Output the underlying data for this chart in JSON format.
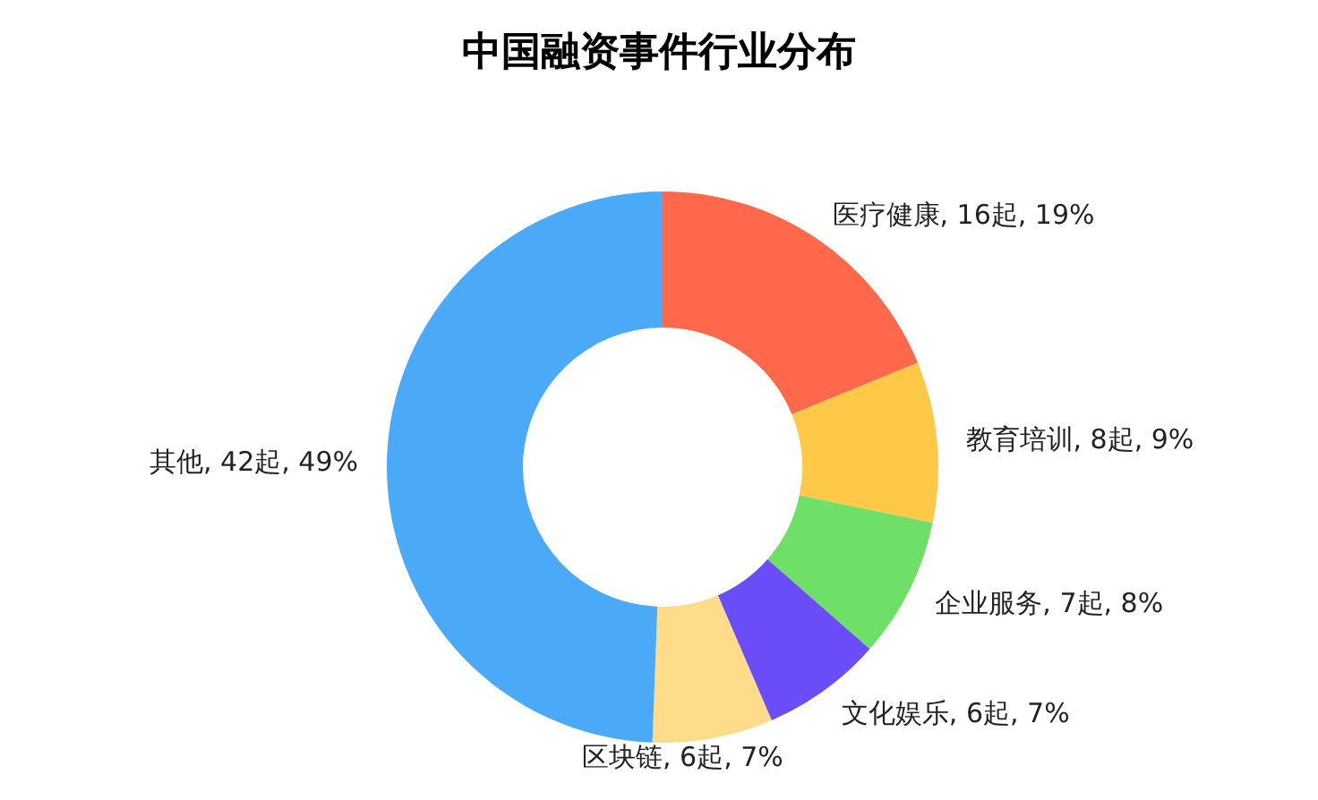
{
  "chart_data": {
    "type": "donut",
    "title": "中国融资事件行业分布",
    "categories": [
      "医疗健康",
      "教育培训",
      "企业服务",
      "文化娱乐",
      "区块链",
      "其他"
    ],
    "values": [
      16,
      8,
      7,
      6,
      6,
      42
    ],
    "value_labels": [
      "16起, 19%",
      "8起, 9%",
      "7起, 8%",
      "6起, 7%",
      "6起, 7%",
      "42起, 49%"
    ],
    "colors": [
      "#ff684b",
      "#ffc947",
      "#6fe067",
      "#6b4df7",
      "#ffdc8a",
      "#4aaaf8"
    ],
    "legend": false
  }
}
